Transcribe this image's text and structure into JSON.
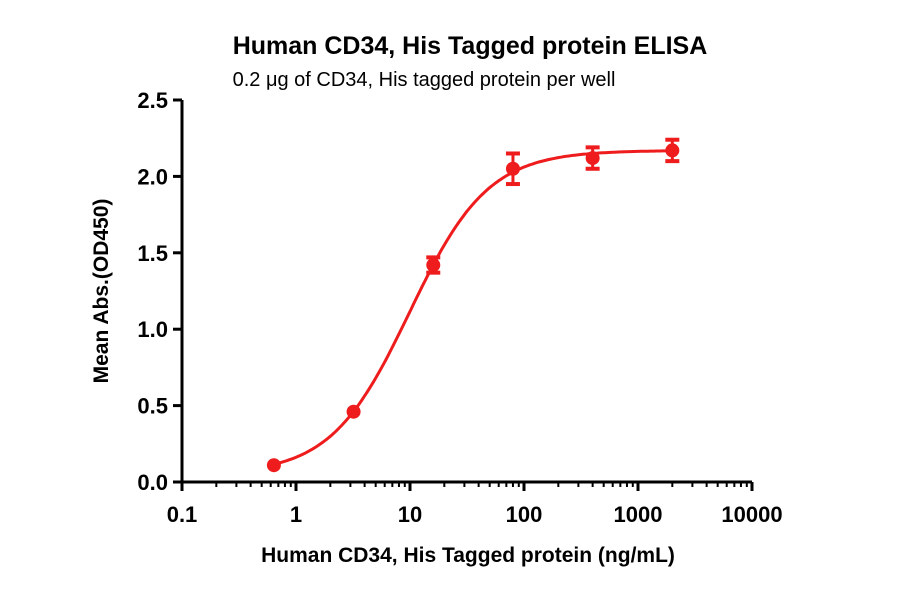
{
  "chart_data": {
    "type": "scatter",
    "title": "Human CD34, His Tagged protein ELISA",
    "subtitle": "0.2 μg of CD34, His tagged protein per well",
    "xlabel": "Human CD34, His Tagged protein (ng/mL)",
    "ylabel": "Mean Abs.(OD450)",
    "xscale": "log",
    "xlim": [
      0.1,
      10000
    ],
    "ylim": [
      0,
      2.5
    ],
    "xticks": [
      "0.1",
      "1",
      "10",
      "100",
      "1000",
      "10000"
    ],
    "xtick_values": [
      0.1,
      1,
      10,
      100,
      1000,
      10000
    ],
    "yticks": [
      "0.0",
      "0.5",
      "1.0",
      "1.5",
      "2.0",
      "2.5"
    ],
    "ytick_values": [
      0,
      0.5,
      1,
      1.5,
      2,
      2.5
    ],
    "grid": false,
    "color": "#ee1c1c",
    "series": [
      {
        "name": "Human CD34, His Tagged protein",
        "x": [
          0.64,
          3.2,
          16,
          80,
          400,
          2000
        ],
        "y": [
          0.11,
          0.46,
          1.42,
          2.05,
          2.12,
          2.17
        ],
        "error": [
          0.01,
          0.02,
          0.05,
          0.1,
          0.07,
          0.07
        ]
      }
    ],
    "fit": {
      "model": "4PL",
      "bottom": 0.05,
      "top": 2.17,
      "ec50": 9.9,
      "hill": 1.26
    }
  }
}
